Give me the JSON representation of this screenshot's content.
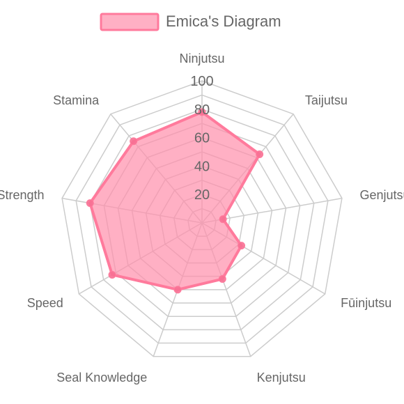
{
  "chart_data": {
    "type": "radar",
    "categories": [
      "Ninjutsu",
      "Taijutsu",
      "Genjutsu",
      "Fūinjutsu",
      "Kenjutsu",
      "Seal Knowledge",
      "Speed",
      "Strength",
      "Stamina"
    ],
    "series": [
      {
        "name": "Emica's Diagram",
        "values": [
          78,
          63,
          15,
          32,
          42,
          50,
          73,
          80,
          75
        ]
      }
    ],
    "rlim": [
      0,
      100
    ],
    "ticks": [
      20,
      40,
      60,
      80,
      100
    ],
    "legend_position": "top",
    "grid": true,
    "colors": {
      "fill": "#ff8fab",
      "stroke": "#ff7a9c",
      "point": "#f77093",
      "grid": "#cccccc",
      "text": "#666666"
    }
  }
}
